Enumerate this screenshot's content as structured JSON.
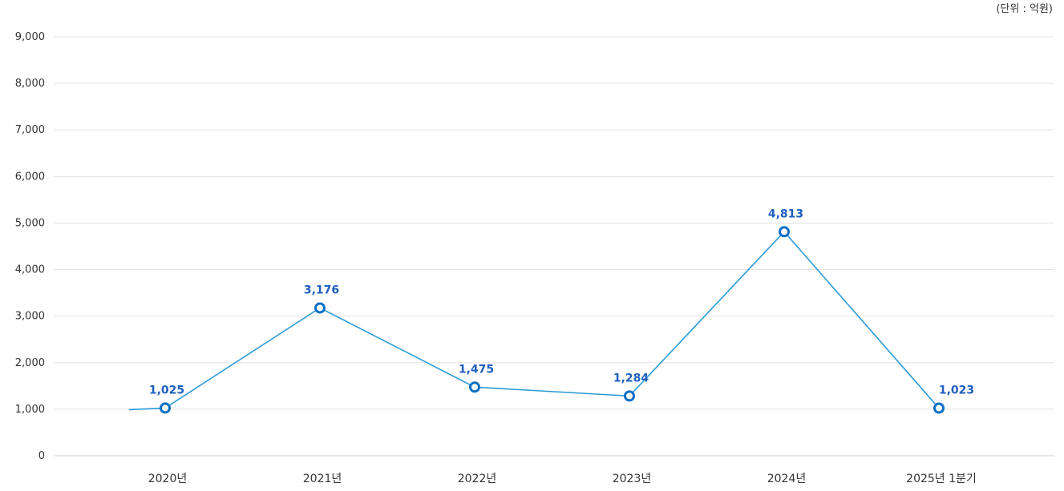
{
  "unit_label": "(단위 : 억원)",
  "colors": {
    "line": "#2b9bd6",
    "marker_stroke": "#0a6fc2",
    "data_label": "#1f5fc0",
    "grid": "#e3e3e3",
    "axis_text": "#333333"
  },
  "chart_data": {
    "type": "line",
    "title": "",
    "xlabel": "",
    "ylabel": "",
    "unit": "(단위 : 억원)",
    "categories": [
      "2020년",
      "2021년",
      "2022년",
      "2023년",
      "2024년",
      "2025년 1분기"
    ],
    "series": [
      {
        "values": [
          1025,
          3176,
          1475,
          1284,
          4813,
          1023
        ],
        "data_labels": [
          "1,025",
          "3,176",
          "1,475",
          "1,284",
          "4,813",
          "1,023"
        ],
        "lead_in_value": 990
      }
    ],
    "ylim": [
      0,
      9000
    ],
    "yticks": [
      0,
      1000,
      2000,
      3000,
      4000,
      5000,
      6000,
      7000,
      8000,
      9000
    ],
    "ytick_labels": [
      "0",
      "1,000",
      "2,000",
      "3,000",
      "4,000",
      "5,000",
      "6,000",
      "7,000",
      "8,000",
      "9,000"
    ],
    "grid": true,
    "legend": "none"
  }
}
